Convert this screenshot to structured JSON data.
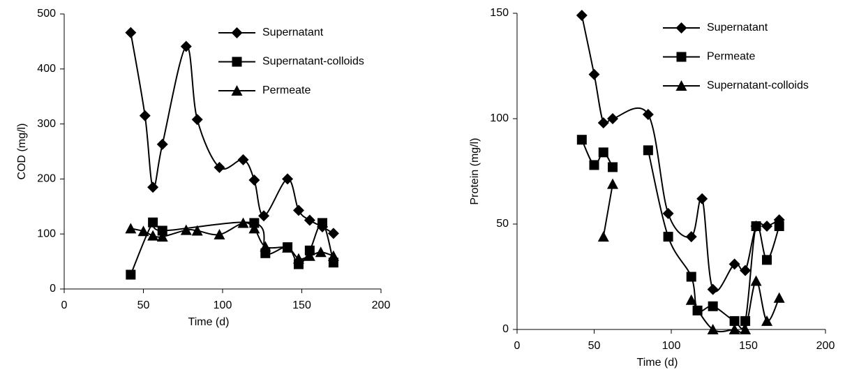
{
  "chart_data": [
    {
      "type": "line",
      "x_label": "Time (d)",
      "y_label": "COD (mg/l)",
      "xlim": [
        0,
        200
      ],
      "xticks": [
        0,
        50,
        100,
        150,
        200
      ],
      "ylim": [
        0,
        500
      ],
      "yticks": [
        0,
        100,
        200,
        300,
        400,
        500
      ],
      "smooth": true,
      "series": [
        {
          "name": "Supernatant",
          "marker": "diamond",
          "color": "#000000",
          "x": [
            42,
            51,
            56,
            62,
            77,
            84,
            98,
            113,
            120,
            126,
            141,
            148,
            155,
            163,
            170
          ],
          "values": [
            466,
            315,
            185,
            263,
            441,
            308,
            221,
            235,
            198,
            133,
            200,
            143,
            125,
            113,
            101
          ]
        },
        {
          "name": "Supernatant-colloids",
          "marker": "square",
          "color": "#000000",
          "x": [
            42,
            56,
            62,
            120,
            127,
            141,
            148,
            155,
            163,
            170
          ],
          "values": [
            26,
            121,
            106,
            120,
            65,
            76,
            45,
            70,
            120,
            48
          ]
        },
        {
          "name": "Permeate",
          "marker": "triangle",
          "color": "#000000",
          "x": [
            42,
            50,
            56,
            62,
            77,
            84,
            98,
            113,
            120,
            127,
            141,
            148,
            155,
            162,
            170
          ],
          "values": [
            110,
            105,
            97,
            95,
            107,
            106,
            99,
            120,
            110,
            77,
            75,
            55,
            60,
            67,
            60
          ]
        }
      ]
    },
    {
      "type": "line",
      "x_label": "Time (d)",
      "y_label": "Protein (mg/l)",
      "xlim": [
        0,
        200
      ],
      "xticks": [
        0,
        50,
        100,
        150,
        200
      ],
      "ylim": [
        0,
        150
      ],
      "yticks": [
        0,
        50,
        100,
        150
      ],
      "smooth": true,
      "series": [
        {
          "name": "Supernatant",
          "marker": "diamond",
          "color": "#000000",
          "x": [
            42,
            50,
            56,
            62,
            85,
            98,
            113,
            120,
            127,
            141,
            148,
            155,
            162,
            170
          ],
          "values": [
            149,
            121,
            98,
            100,
            102,
            55,
            44,
            62,
            19,
            31,
            28,
            49,
            49,
            52
          ]
        },
        {
          "name": "Permeate",
          "marker": "square",
          "color": "#000000",
          "x": [
            42,
            50,
            56,
            62,
            77,
            85,
            98,
            113,
            117,
            127,
            141,
            148,
            155,
            162,
            170
          ],
          "values": [
            90,
            78,
            84,
            77,
            null,
            85,
            44,
            25,
            9,
            11,
            4,
            4,
            49,
            33,
            49
          ]
        },
        {
          "name": "Supernatant-colloids",
          "marker": "triangle",
          "color": "#000000",
          "x": [
            56,
            62,
            85,
            113,
            127,
            141,
            148,
            155,
            162,
            170
          ],
          "values": [
            44,
            69,
            null,
            14,
            0,
            0,
            0,
            23,
            4,
            15
          ]
        }
      ]
    }
  ]
}
